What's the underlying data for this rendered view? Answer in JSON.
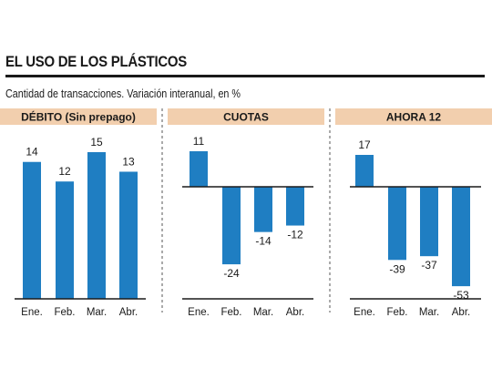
{
  "title": "EL USO DE LOS PLÁSTICOS",
  "subtitle": "Cantidad de transacciones. Variación interanual, en %",
  "colors": {
    "bar": "#1f7ec2",
    "panel_header": "#f2cfae"
  },
  "chart_data": [
    {
      "type": "bar",
      "title": "DÉBITO (Sin prepago)",
      "categories": [
        "Ene.",
        "Feb.",
        "Mar.",
        "Abr."
      ],
      "values": [
        14,
        12,
        15,
        13
      ]
    },
    {
      "type": "bar",
      "title": "CUOTAS",
      "categories": [
        "Ene.",
        "Feb.",
        "Mar.",
        "Abr."
      ],
      "values": [
        11,
        -24,
        -14,
        -12
      ]
    },
    {
      "type": "bar",
      "title": "AHORA 12",
      "categories": [
        "Ene.",
        "Feb.",
        "Mar.",
        "Abr."
      ],
      "values": [
        17,
        -39,
        -37,
        -53
      ]
    }
  ]
}
